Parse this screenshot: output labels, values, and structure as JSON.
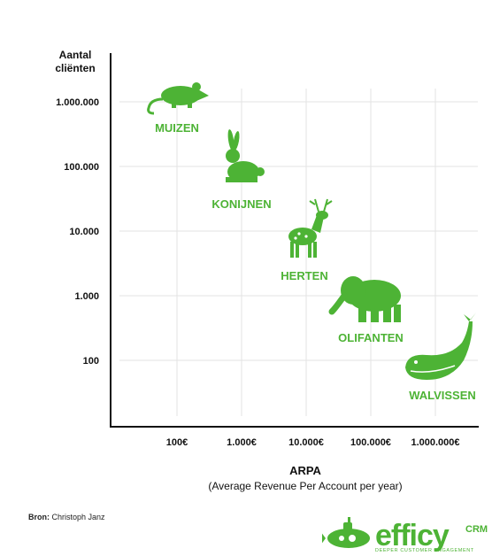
{
  "chart_data": {
    "type": "scatter",
    "ylabel": "Aantal cliënten",
    "xlabel": "ARPA",
    "xlabel_sub": "(Average Revenue Per Account per year)",
    "x_scale": "log",
    "y_scale": "log",
    "xlim": [
      10,
      10000000
    ],
    "ylim": [
      10,
      10000000
    ],
    "x_ticks": [
      100,
      1000,
      10000,
      100000,
      1000000
    ],
    "x_tick_labels": [
      "100€",
      "1.000€",
      "10.000€",
      "100.000€",
      "1.000.000€"
    ],
    "y_ticks": [
      100,
      1000,
      10000,
      100000,
      1000000
    ],
    "y_tick_labels": [
      "100",
      "1.000",
      "10.000",
      "100.000",
      "1.000.000"
    ],
    "grid": true,
    "points": [
      {
        "label": "MUIZEN",
        "icon": "mouse-icon",
        "x": 100,
        "y": 1000000
      },
      {
        "label": "KONIJNEN",
        "icon": "rabbit-icon",
        "x": 1000,
        "y": 100000
      },
      {
        "label": "HERTEN",
        "icon": "deer-icon",
        "x": 10000,
        "y": 10000
      },
      {
        "label": "OLIFANTEN",
        "icon": "elephant-icon",
        "x": 100000,
        "y": 1000
      },
      {
        "label": "WALVISSEN",
        "icon": "whale-icon",
        "x": 1000000,
        "y": 100
      }
    ]
  },
  "colors": {
    "animal": "#4db335",
    "axis": "#111111",
    "grid": "#e3e3e3"
  },
  "source": {
    "label": "Bron:",
    "text": "Christoph Janz"
  },
  "logo": {
    "word": "efficy",
    "suffix": "CRM",
    "tagline": "DEEPER CUSTOMER ENGAGEMENT"
  }
}
